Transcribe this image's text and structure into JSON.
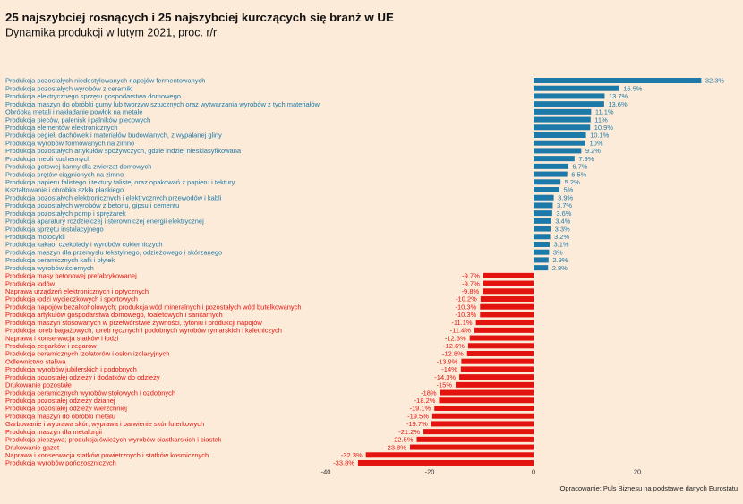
{
  "chart_data": {
    "type": "bar",
    "orientation": "horizontal",
    "title": "25 najszybciej rosnących i 25 najszybciej kurczących się branż w UE",
    "subtitle": "Dynamika produkcji w lutym 2021, proc. r/r",
    "xlabel": "",
    "ylabel": "",
    "xticks": [
      -40,
      -20,
      0,
      20
    ],
    "grid": false,
    "legend": "none",
    "colors": {
      "positive": "#1D7AA8",
      "negative": "#E3140F",
      "background": "#FCEBD9"
    },
    "categories": [
      "Produkcja pozostałych niedestylowanych napojów fermentowanych",
      "Produkcja pozostałych wyrobów z ceramiki",
      "Produkcja elektrycznego sprzętu gospodarstwa domowego",
      "Produkcja maszyn do obróbki gumy lub tworzyw sztucznych oraz wytwarzania wyrobów z tych materiałów",
      "Obróbka metali i nakładanie powłok na metale",
      "Produkcja pieców, palenisk i palników piecowych",
      "Produkcja elementów elektronicznych",
      "Produkcja cegieł, dachówek i materiałów budowlanych, z wypalanej gliny",
      "Produkcja wyrobów formowanych na zimno",
      "Produkcja pozostałych artykułów spożywczych, gdzie indziej niesklasyfikowana",
      "Produkcja mebli kuchennych",
      "Produkcja gotowej karmy dla zwierząt domowych",
      "Produkcja prętów ciągnionych na zimno",
      "Produkcja papieru falistego i tektury falistej oraz opakowań z papieru i tektury",
      "Kształtowanie i obróbka szkła płaskiego",
      "Produkcja pozostałych elektronicznych i elektrycznych przewodów i kabli",
      "Produkcja pozostałych wyrobów z betonu, gipsu i cementu",
      "Produkcja pozostałych pomp i sprężarek",
      "Produkcja aparatury rozdzielczej i sterowniczej energii elektrycznej",
      "Produkcja sprzętu instalacyjnego",
      "Produkcja motocykli",
      "Produkcja kakao, czekolady i wyrobów cukierniczych",
      "Produkcja maszyn dla przemysłu tekstylnego, odzieżowego i skórzanego",
      "Produkcja ceramicznych kafli i płytek",
      "Produkcja wyrobów ściernych",
      "Produkcja masy betonowej prefabrykowanej",
      "Produkcja lodów",
      "Naprawa urządzeń elektronicznych i optycznych",
      "Produkcja łodzi wycieczkowych i sportowych",
      "Produkcja napojów bezalkoholowych; produkcja wód mineralnych i pozostałych wód butelkowanych",
      "Produkcja artykułów gospodarstwa domowego, toaletowych i sanitarnych",
      "Produkcja maszyn stosowanych w przetwórstwie żywności, tytoniu i produkcji napojów",
      "Produkcja toreb bagażowych, toreb ręcznych i podobnych wyrobów rymarskich i kaletniczych",
      "Naprawa i konserwacja statków i łodzi",
      "Produkcja zegarków i zegarów",
      "Produkcja ceramicznych izolatorów i osłon izolacyjnych",
      "Odlewnictwo staliwa",
      "Produkcja wyrobów jubilerskich i podobnych",
      "Produkcja pozostałej odzieży i dodatków do odzieży",
      "Drukowanie pozostałe",
      "Produkcja ceramicznych wyrobów stołowych i ozdobnych",
      "Produkcja pozostałej odzieży dzianej",
      "Produkcja pozostałej odzieży wierzchniej",
      "Produkcja maszyn do obróbki metalu",
      "Garbowanie i wyprawa skór; wyprawa i barwienie skór futerkowych",
      "Produkcja maszyn dla metalurgii",
      "Produkcja pieczywa; produkcja świeżych wyrobów ciastkarskich i ciastek",
      "Drukowanie gazet",
      "Naprawa i konserwacja statków powietrznych i statków kosmicznych",
      "Produkcja wyrobów pończoszniczych"
    ],
    "values": [
      32.3,
      16.5,
      13.7,
      13.6,
      11.1,
      11,
      10.9,
      10.1,
      10,
      9.2,
      7.9,
      6.7,
      6.5,
      5.2,
      5,
      3.9,
      3.7,
      3.6,
      3.4,
      3.3,
      3.2,
      3.1,
      3,
      2.9,
      2.8,
      -9.7,
      -9.7,
      -9.8,
      -10.2,
      -10.3,
      -10.3,
      -11.1,
      -11.4,
      -12.3,
      -12.6,
      -12.8,
      -13.9,
      -14,
      -14.3,
      -15,
      -18,
      -18.2,
      -19.1,
      -19.5,
      -19.7,
      -21.2,
      -22.5,
      -23.8,
      -32.3,
      -33.8
    ],
    "data_labels": [
      "32.3%",
      "16.5%",
      "13.7%",
      "13.6%",
      "11.1%",
      "11%",
      "10.9%",
      "10.1%",
      "10%",
      "9.2%",
      "7.9%",
      "6.7%",
      "6.5%",
      "5.2%",
      "5%",
      "3.9%",
      "3.7%",
      "3.6%",
      "3.4%",
      "3.3%",
      "3.2%",
      "3.1%",
      "3%",
      "2.9%",
      "2.8%",
      "-9.7%",
      "-9.7%",
      "-9.8%",
      "-10.2%",
      "-10.3%",
      "-10.3%",
      "-11.1%",
      "-11.4%",
      "-12.3%",
      "-12.6%",
      "-12.8%",
      "-13.9%",
      "-14%",
      "-14.3%",
      "-15%",
      "-18%",
      "-18.2%",
      "-19.1%",
      "-19.5%",
      "-19.7%",
      "-21.2%",
      "-22.5%",
      "-23.8%",
      "-32.3%",
      "-33.8%"
    ]
  },
  "source": "Opracowanie: Puls Biznesu na podstawie danych Eurostatu"
}
